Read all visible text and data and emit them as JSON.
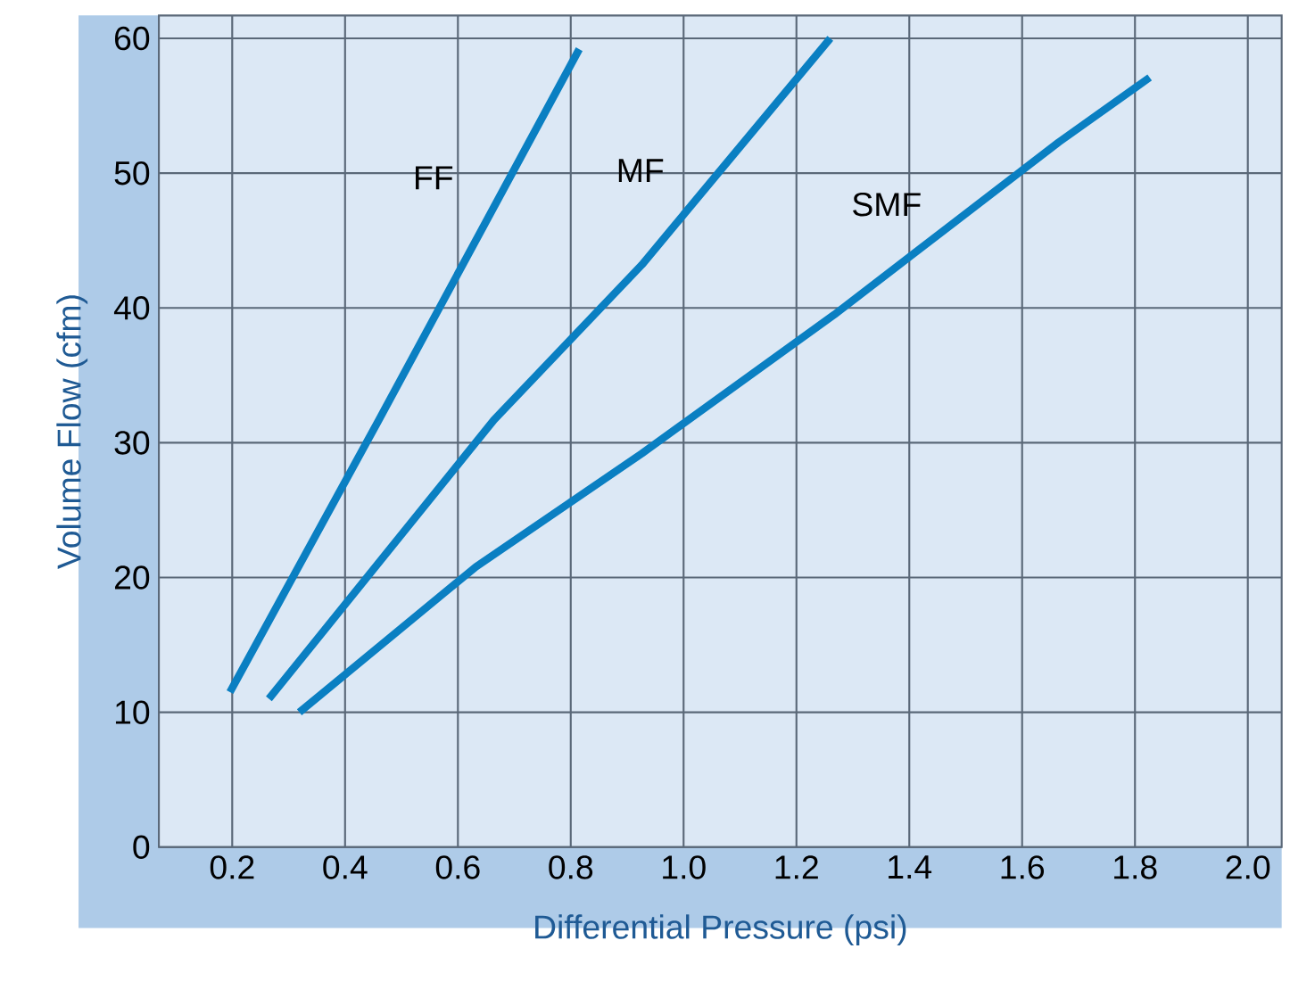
{
  "chart_data": {
    "type": "line",
    "xlabel": "Differential Pressure (psi)",
    "ylabel": "Volume Flow (cfm)",
    "xlim": [
      0.07,
      2.06
    ],
    "ylim": [
      0,
      61.7
    ],
    "xticks": [
      0.2,
      0.4,
      0.6,
      0.8,
      {
        "value": 1.0,
        "label": "1.0"
      },
      1.2,
      1.4,
      1.6,
      1.8,
      {
        "value": 2.0,
        "label": "2.0"
      }
    ],
    "yticks": [
      0,
      10,
      20,
      30,
      40,
      50,
      60
    ],
    "grid": true,
    "line_style": "solid",
    "marker": "none",
    "series": [
      {
        "name": "FF",
        "color": "#0a7fc2",
        "x": [
          0.196,
          0.46,
          0.815
        ],
        "values": [
          11.5,
          31.7,
          59.2
        ]
      },
      {
        "name": "MF",
        "color": "#0a7fc2",
        "x": [
          0.265,
          0.664,
          0.926,
          1.26
        ],
        "values": [
          11.0,
          31.7,
          43.2,
          60.0
        ]
      },
      {
        "name": "SMF",
        "color": "#0a7fc2",
        "x": [
          0.319,
          0.632,
          0.926,
          1.267,
          1.665,
          1.826
        ],
        "values": [
          10.0,
          20.8,
          29.2,
          39.5,
          52.3,
          57.1
        ]
      }
    ]
  }
}
